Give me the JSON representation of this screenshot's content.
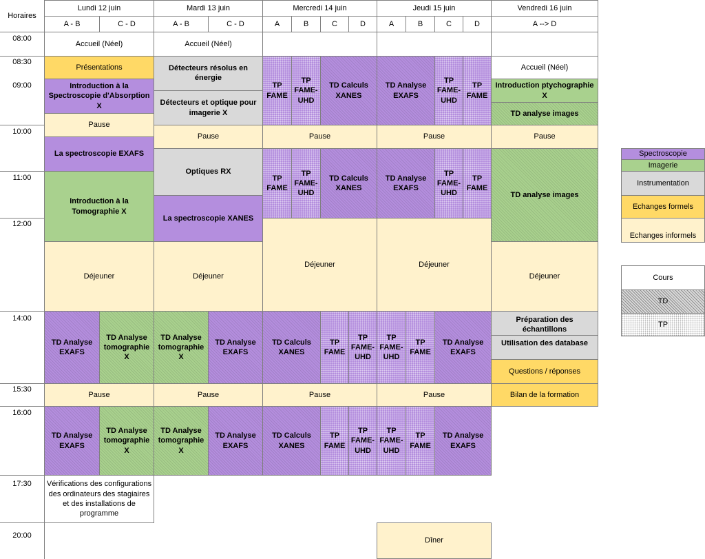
{
  "horaires_label": "Horaires",
  "days": [
    "Lundi 12 juin",
    "Mardi 13 juin",
    "Mercredi 14 juin",
    "Jeudi 15 juin",
    "Vendredi 16 juin"
  ],
  "groups": {
    "ab": "A - B",
    "cd": "C - D",
    "a": "A",
    "b": "B",
    "c": "C",
    "d": "D",
    "atod": "A --> D"
  },
  "times": [
    "08:00",
    "08:30",
    "09:00",
    "10:00",
    "11:00",
    "12:00",
    "14:00",
    "15:30",
    "16:00",
    "17:30",
    "20:00"
  ],
  "sessions": {
    "accueil": "Accueil (Néel)",
    "presentations": "Présentations",
    "intro_spectro": "Introduction à la Spectroscopie d'Absorption X",
    "pause": "Pause",
    "spectro_exafs": "La spectroscopie EXAFS",
    "intro_tomo": "Introduction à la Tomographie X",
    "dejeuner": "Déjeuner",
    "td_exafs": "TD Analyse EXAFS",
    "td_tomo": "TD Analyse tomographie X",
    "verif": "Vérifications des configurations des ordinateurs des stagiaires et des installations de programme",
    "detecteurs_energie": "Détecteurs résolus en énergie",
    "detecteurs_imagerie": "Détecteurs et optique pour imagerie X",
    "optiques_rx": "Optiques RX",
    "spectro_xanes": "La spectroscopie XANES",
    "tp_fame": "TP FAME",
    "tp_fame_uhd": "TP FAME-UHD",
    "td_xanes": "TD Calculs XANES",
    "diner": "Dîner",
    "intro_ptycho": "Introduction ptychographie X",
    "td_images": "TD analyse images",
    "td_images_cap": "TD analyse images",
    "prep_echantillons": "Préparation des échantillons",
    "database": "Utilisation des database",
    "questions": "Questions / réponses",
    "bilan": "Bilan de la formation"
  },
  "legend": {
    "spectroscopie": "Spectroscopie",
    "imagerie": "Imagerie",
    "instrumentation": "Instrumentation",
    "echanges_formels": "Echanges formels",
    "echanges_informels": "Echanges informels",
    "cours": "Cours",
    "td": "TD",
    "tp": "TP"
  },
  "colors": {
    "spectroscopie": "#b48ede",
    "imagerie": "#a9d18e",
    "instrumentation": "#d9d9d9",
    "echanges_formels": "#ffd966",
    "echanges_informels": "#fff2cc"
  }
}
